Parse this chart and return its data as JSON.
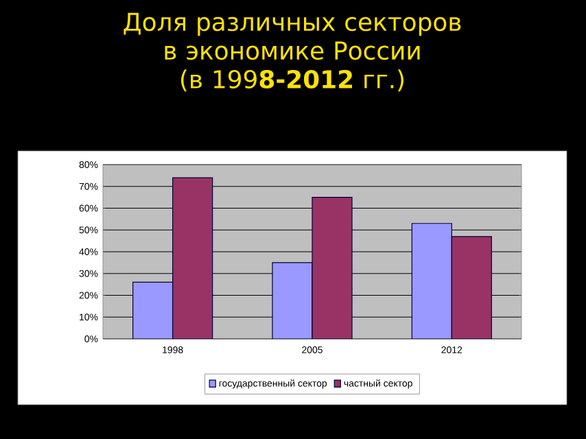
{
  "chart_data": {
    "type": "bar",
    "title": "Доля различных секторов в экономике России (в 199**8-2012** гг.)",
    "categories": [
      "1998",
      "2005",
      "2012"
    ],
    "series": [
      {
        "name": "государственный сектор",
        "color": "#9999ff",
        "values": [
          26,
          35,
          53
        ]
      },
      {
        "name": "частный сектор",
        "color": "#993366",
        "values": [
          74,
          65,
          47
        ]
      }
    ],
    "ylim": [
      0,
      80
    ],
    "yticks": [
      {
        "value": 0,
        "label": "0%"
      },
      {
        "value": 10,
        "label": "10%"
      },
      {
        "value": 20,
        "label": "20%"
      },
      {
        "value": 30,
        "label": "30%"
      },
      {
        "value": 40,
        "label": "40%"
      },
      {
        "value": 50,
        "label": "50%"
      },
      {
        "value": 60,
        "label": "60%"
      },
      {
        "value": 70,
        "label": "70%"
      },
      {
        "value": 80,
        "label": "80%"
      }
    ],
    "grid": "y",
    "legend": "bottom"
  }
}
